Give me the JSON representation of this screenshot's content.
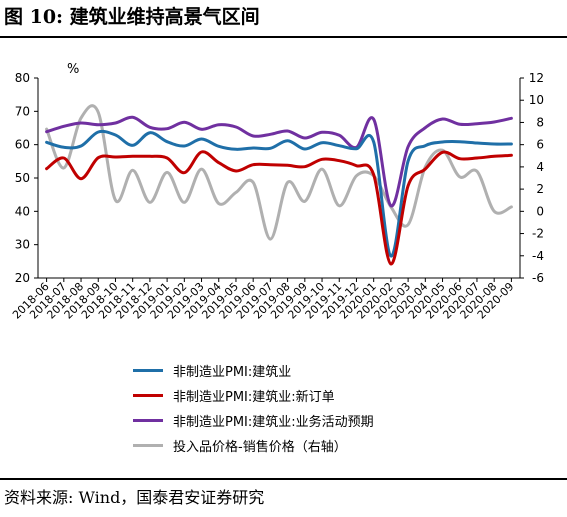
{
  "figure": {
    "title": "图 10:  建筑业维持高景气区间",
    "source": "资料来源:  Wind，国泰君安证券研究"
  },
  "colors": {
    "s1": "#1f6fa8",
    "s2": "#c00000",
    "s3": "#7030a0",
    "s4": "#b0b0b0"
  },
  "chart_data": {
    "type": "line",
    "y_left": {
      "ticks": [
        "80",
        "70",
        "60",
        "50",
        "40",
        "30",
        "20"
      ],
      "unit": "%",
      "lim": [
        20,
        80
      ]
    },
    "y_right": {
      "ticks": [
        "12",
        "10",
        "8",
        "6",
        "4",
        "2",
        "0",
        "-2",
        "-4",
        "-6"
      ],
      "lim": [
        -6,
        12
      ]
    },
    "x_ticks": [
      "2018-06",
      "2018-07",
      "2018-08",
      "2018-09",
      "2018-10",
      "2018-11",
      "2018-12",
      "2019-01",
      "2019-02",
      "2019-03",
      "2019-04",
      "2019-05",
      "2019-06",
      "2019-07",
      "2019-08",
      "2019-09",
      "2019-10",
      "2019-11",
      "2019-12",
      "2020-01",
      "2020-02",
      "2020-03",
      "2020-04",
      "2020-05",
      "2020-06",
      "2020-07",
      "2020-08",
      "2020-09"
    ],
    "legend": [
      "非制造业PMI:建筑业",
      "非制造业PMI:建筑业:新订单",
      "非制造业PMI:建筑业:业务活动预期",
      "投入品价格-销售价格（右轴）"
    ],
    "series": [
      {
        "name": "非制造业PMI:建筑业",
        "axis": "left",
        "values": [
          60.7,
          59.2,
          59.6,
          63.8,
          62.9,
          59.8,
          63.6,
          60.9,
          59.6,
          61.7,
          59.5,
          58.6,
          59.0,
          58.9,
          61.2,
          58.7,
          60.6,
          59.7,
          58.8,
          60.8,
          26.6,
          55.1,
          59.7,
          60.8,
          60.9,
          60.5,
          60.2,
          60.2
        ]
      },
      {
        "name": "非制造业PMI:建筑业:新订单",
        "axis": "left",
        "values": [
          52.8,
          56.0,
          49.8,
          56.1,
          56.3,
          56.5,
          56.5,
          56.0,
          51.6,
          57.8,
          54.6,
          52.1,
          54.0,
          54.0,
          53.8,
          53.4,
          55.6,
          55.2,
          53.7,
          51.0,
          24.2,
          47.7,
          52.7,
          57.7,
          55.8,
          56.0,
          56.5,
          56.8
        ]
      },
      {
        "name": "非制造业PMI:建筑业:业务活动预期",
        "axis": "left",
        "values": [
          63.9,
          65.5,
          66.5,
          66.0,
          66.5,
          68.2,
          65.2,
          64.8,
          66.7,
          64.6,
          66.0,
          65.3,
          62.6,
          63.1,
          64.1,
          62.0,
          63.7,
          62.8,
          59.2,
          67.6,
          41.7,
          59.4,
          65.1,
          67.7,
          66.1,
          66.3,
          66.8,
          67.9
        ]
      },
      {
        "name": "投入品价格-销售价格（右轴）",
        "axis": "right",
        "values": [
          7.4,
          3.9,
          8.4,
          8.9,
          1.0,
          3.7,
          0.8,
          3.5,
          0.8,
          3.8,
          0.7,
          1.7,
          2.6,
          -2.5,
          2.6,
          0.9,
          3.8,
          0.5,
          3.2,
          3.2,
          0.4,
          -1.2,
          4.0,
          5.5,
          3.1,
          3.6,
          0.0,
          0.4
        ]
      }
    ]
  }
}
